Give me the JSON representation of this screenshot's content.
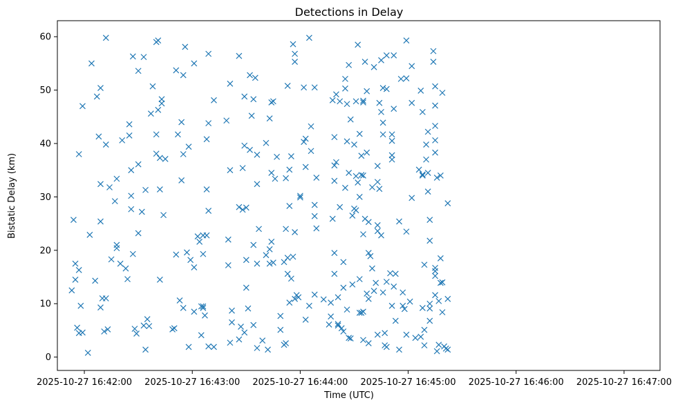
{
  "chart_data": {
    "type": "scatter",
    "title": "Detections in Delay",
    "xlabel": "Time (UTC)",
    "ylabel": "Bistatic Delay (km)",
    "marker": "x",
    "color": "#1f77b4",
    "grid": false,
    "xlim": [
      "2025-10-27 16:41:45",
      "2025-10-27 16:47:20"
    ],
    "ylim": [
      -2.5,
      63
    ],
    "xticks": [
      "2025-10-27 16:42:00",
      "2025-10-27 16:43:00",
      "2025-10-27 16:44:00",
      "2025-10-27 16:45:00",
      "2025-10-27 16:46:00",
      "2025-10-27 16:47:00"
    ],
    "yticks": [
      0,
      10,
      20,
      30,
      40,
      50,
      60
    ],
    "x_labels_times": true,
    "points": [
      [
        "16:41:53",
        12.5
      ],
      [
        "16:41:54",
        25.7
      ],
      [
        "16:41:55",
        17.5
      ],
      [
        "16:41:55",
        14.5
      ],
      [
        "16:41:56",
        5.5
      ],
      [
        "16:41:57",
        4.5
      ],
      [
        "16:41:57",
        16.3
      ],
      [
        "16:41:57",
        38
      ],
      [
        "16:41:58",
        9.6
      ],
      [
        "16:41:59",
        4.6
      ],
      [
        "16:41:59",
        47
      ],
      [
        "16:42:02",
        0.8
      ],
      [
        "16:42:03",
        22.9
      ],
      [
        "16:42:04",
        55
      ],
      [
        "16:42:06",
        14.3
      ],
      [
        "16:42:07",
        48.8
      ],
      [
        "16:42:08",
        41.3
      ],
      [
        "16:42:09",
        50.4
      ],
      [
        "16:42:09",
        32.4
      ],
      [
        "16:42:09",
        25.4
      ],
      [
        "16:42:09",
        9.3
      ],
      [
        "16:42:10",
        11
      ],
      [
        "16:42:11",
        4.8
      ],
      [
        "16:42:12",
        11
      ],
      [
        "16:42:12",
        59.8
      ],
      [
        "16:42:12",
        39.8
      ],
      [
        "16:42:13",
        5.2
      ],
      [
        "16:42:14",
        31.8
      ],
      [
        "16:42:15",
        18.3
      ],
      [
        "16:42:17",
        29.2
      ],
      [
        "16:42:18",
        20.4
      ],
      [
        "16:42:18",
        33.4
      ],
      [
        "16:42:18",
        21
      ],
      [
        "16:42:20",
        17.5
      ],
      [
        "16:42:21",
        40.6
      ],
      [
        "16:42:23",
        16.6
      ],
      [
        "16:42:24",
        14.6
      ],
      [
        "16:42:25",
        43.6
      ],
      [
        "16:42:25",
        41.5
      ],
      [
        "16:42:26",
        35
      ],
      [
        "16:42:26",
        30.2
      ],
      [
        "16:42:26",
        27.7
      ],
      [
        "16:42:27",
        56.3
      ],
      [
        "16:42:27",
        19.3
      ],
      [
        "16:42:28",
        5.3
      ],
      [
        "16:42:29",
        4.4
      ],
      [
        "16:42:30",
        53.6
      ],
      [
        "16:42:30",
        36.1
      ],
      [
        "16:42:30",
        23.2
      ],
      [
        "16:42:32",
        27.2
      ],
      [
        "16:42:33",
        5.9
      ],
      [
        "16:42:33",
        56.2
      ],
      [
        "16:42:34",
        31.3
      ],
      [
        "16:42:34",
        1.4
      ],
      [
        "16:42:35",
        7.1
      ],
      [
        "16:42:36",
        5.8
      ],
      [
        "16:42:37",
        45.6
      ],
      [
        "16:42:38",
        50.7
      ],
      [
        "16:42:40",
        59
      ],
      [
        "16:42:40",
        41.7
      ],
      [
        "16:42:40",
        38.1
      ],
      [
        "16:42:41",
        46.3
      ],
      [
        "16:42:41",
        59.3
      ],
      [
        "16:42:42",
        37.3
      ],
      [
        "16:42:42",
        31.4
      ],
      [
        "16:42:42",
        14.5
      ],
      [
        "16:42:43",
        48.3
      ],
      [
        "16:42:43",
        47.5
      ],
      [
        "16:42:44",
        26.6
      ],
      [
        "16:42:45",
        37.1
      ],
      [
        "16:42:49",
        5.2
      ],
      [
        "16:42:50",
        5.4
      ],
      [
        "16:42:51",
        19.2
      ],
      [
        "16:42:51",
        53.7
      ],
      [
        "16:42:52",
        41.7
      ],
      [
        "16:42:53",
        10.6
      ],
      [
        "16:42:54",
        33.1
      ],
      [
        "16:42:54",
        44
      ],
      [
        "16:42:55",
        38
      ],
      [
        "16:42:55",
        52.8
      ],
      [
        "16:42:55",
        9.2
      ],
      [
        "16:42:56",
        58.1
      ],
      [
        "16:42:57",
        19.6
      ],
      [
        "16:42:58",
        1.9
      ],
      [
        "16:42:58",
        39.4
      ],
      [
        "16:42:59",
        18.2
      ],
      [
        "16:43:01",
        55
      ],
      [
        "16:43:01",
        16.8
      ],
      [
        "16:43:01",
        8.5
      ],
      [
        "16:43:03",
        22.6
      ],
      [
        "16:43:04",
        21.6
      ],
      [
        "16:43:05",
        9.5
      ],
      [
        "16:43:05",
        4.1
      ],
      [
        "16:43:06",
        9.5
      ],
      [
        "16:43:06",
        9.2
      ],
      [
        "16:43:06",
        19.3
      ],
      [
        "16:43:06",
        22.8
      ],
      [
        "16:43:07",
        7.8
      ],
      [
        "16:43:08",
        40.8
      ],
      [
        "16:43:08",
        31.4
      ],
      [
        "16:43:08",
        22.8
      ],
      [
        "16:43:09",
        2
      ],
      [
        "16:43:09",
        56.8
      ],
      [
        "16:43:09",
        43.8
      ],
      [
        "16:43:09",
        27.4
      ],
      [
        "16:43:12",
        48.1
      ],
      [
        "16:43:12",
        1.9
      ],
      [
        "16:43:19",
        44.3
      ],
      [
        "16:43:20",
        22
      ],
      [
        "16:43:20",
        17.2
      ],
      [
        "16:43:21",
        51.2
      ],
      [
        "16:43:21",
        35
      ],
      [
        "16:43:21",
        2.7
      ],
      [
        "16:43:22",
        8.7
      ],
      [
        "16:43:22",
        6.5
      ],
      [
        "16:43:26",
        56.4
      ],
      [
        "16:43:26",
        28.1
      ],
      [
        "16:43:26",
        3.3
      ],
      [
        "16:43:27",
        5.7
      ],
      [
        "16:43:28",
        35.4
      ],
      [
        "16:43:28",
        27.6
      ],
      [
        "16:43:29",
        48.8
      ],
      [
        "16:43:29",
        4.6
      ],
      [
        "16:43:29",
        39.6
      ],
      [
        "16:43:30",
        28
      ],
      [
        "16:43:30",
        18.2
      ],
      [
        "16:43:30",
        13
      ],
      [
        "16:43:31",
        9.1
      ],
      [
        "16:43:32",
        38.8
      ],
      [
        "16:43:32",
        52.8
      ],
      [
        "16:43:33",
        45.2
      ],
      [
        "16:43:34",
        48.3
      ],
      [
        "16:43:34",
        21
      ],
      [
        "16:43:34",
        6
      ],
      [
        "16:43:35",
        52.3
      ],
      [
        "16:43:36",
        37.9
      ],
      [
        "16:43:36",
        32.4
      ],
      [
        "16:43:36",
        17.5
      ],
      [
        "16:43:36",
        1.7
      ],
      [
        "16:43:37",
        24
      ],
      [
        "16:43:39",
        3.1
      ],
      [
        "16:43:41",
        40.1
      ],
      [
        "16:43:41",
        19.1
      ],
      [
        "16:43:42",
        1.4
      ],
      [
        "16:43:43",
        44.7
      ],
      [
        "16:43:43",
        20.2
      ],
      [
        "16:43:43",
        17.5
      ],
      [
        "16:43:44",
        34.5
      ],
      [
        "16:43:44",
        47.7
      ],
      [
        "16:43:44",
        21.6
      ],
      [
        "16:43:45",
        47.9
      ],
      [
        "16:43:45",
        17.7
      ],
      [
        "16:43:46",
        33.4
      ],
      [
        "16:43:47",
        37.5
      ],
      [
        "16:43:49",
        7.7
      ],
      [
        "16:43:49",
        5.1
      ],
      [
        "16:43:51",
        2.3
      ],
      [
        "16:43:51",
        17.8
      ],
      [
        "16:43:52",
        2.6
      ],
      [
        "16:43:52",
        24
      ],
      [
        "16:43:52",
        33.5
      ],
      [
        "16:43:53",
        50.8
      ],
      [
        "16:43:53",
        15.6
      ],
      [
        "16:43:53",
        18.6
      ],
      [
        "16:43:54",
        28.3
      ],
      [
        "16:43:54",
        35.1
      ],
      [
        "16:43:54",
        10.2
      ],
      [
        "16:43:55",
        37.6
      ],
      [
        "16:43:55",
        14.7
      ],
      [
        "16:43:56",
        18.8
      ],
      [
        "16:43:56",
        58.6
      ],
      [
        "16:43:57",
        55.3
      ],
      [
        "16:43:57",
        10.9
      ],
      [
        "16:43:57",
        23.4
      ],
      [
        "16:43:57",
        56.8
      ],
      [
        "16:43:58",
        11.6
      ],
      [
        "16:43:59",
        11.2
      ],
      [
        "16:44:00",
        29.9
      ],
      [
        "16:44:00",
        30.2
      ],
      [
        "16:44:02",
        50.5
      ],
      [
        "16:44:02",
        40.3
      ],
      [
        "16:44:03",
        40.9
      ],
      [
        "16:44:03",
        35.6
      ],
      [
        "16:44:03",
        7
      ],
      [
        "16:44:05",
        59.8
      ],
      [
        "16:44:05",
        9.6
      ],
      [
        "16:44:06",
        38.6
      ],
      [
        "16:44:06",
        43.2
      ],
      [
        "16:44:08",
        11.7
      ],
      [
        "16:44:08",
        50.5
      ],
      [
        "16:44:08",
        28.5
      ],
      [
        "16:44:08",
        26.4
      ],
      [
        "16:44:09",
        24.1
      ],
      [
        "16:44:09",
        33.6
      ],
      [
        "16:44:13",
        10.8
      ],
      [
        "16:44:16",
        6.1
      ],
      [
        "16:44:17",
        7.6
      ],
      [
        "16:44:17",
        10.2
      ],
      [
        "16:44:18",
        25.9
      ],
      [
        "16:44:18",
        48.1
      ],
      [
        "16:44:19",
        19.5
      ],
      [
        "16:44:19",
        15.6
      ],
      [
        "16:44:19",
        41.2
      ],
      [
        "16:44:19",
        35.9
      ],
      [
        "16:44:19",
        33
      ],
      [
        "16:44:20",
        49.2
      ],
      [
        "16:44:20",
        36.5
      ],
      [
        "16:44:21",
        5.9
      ],
      [
        "16:44:21",
        6.2
      ],
      [
        "16:44:21",
        11.2
      ],
      [
        "16:44:22",
        47.9
      ],
      [
        "16:44:22",
        28.1
      ],
      [
        "16:44:23",
        5.4
      ],
      [
        "16:44:24",
        4.8
      ],
      [
        "16:44:24",
        17.8
      ],
      [
        "16:44:24",
        13
      ],
      [
        "16:44:25",
        50.3
      ],
      [
        "16:44:25",
        52.1
      ],
      [
        "16:44:25",
        31.7
      ],
      [
        "16:44:26",
        47.4
      ],
      [
        "16:44:26",
        40.4
      ],
      [
        "16:44:26",
        8.9
      ],
      [
        "16:44:27",
        54.7
      ],
      [
        "16:44:27",
        34.5
      ],
      [
        "16:44:27",
        3.6
      ],
      [
        "16:44:28",
        44.5
      ],
      [
        "16:44:28",
        3.5
      ],
      [
        "16:44:29",
        26.5
      ],
      [
        "16:44:29",
        13.6
      ],
      [
        "16:44:30",
        27.8
      ],
      [
        "16:44:30",
        39.8
      ],
      [
        "16:44:31",
        47.9
      ],
      [
        "16:44:31",
        33.9
      ],
      [
        "16:44:31",
        27.5
      ],
      [
        "16:44:32",
        58.5
      ],
      [
        "16:44:32",
        32.7
      ],
      [
        "16:44:33",
        30
      ],
      [
        "16:44:33",
        41.8
      ],
      [
        "16:44:33",
        14.6
      ],
      [
        "16:44:33",
        8.3
      ],
      [
        "16:44:34",
        34.1
      ],
      [
        "16:44:34",
        37.7
      ],
      [
        "16:44:34",
        8.3
      ],
      [
        "16:44:35",
        48
      ],
      [
        "16:44:35",
        47.7
      ],
      [
        "16:44:35",
        34
      ],
      [
        "16:44:35",
        23
      ],
      [
        "16:44:35",
        3.2
      ],
      [
        "16:44:35",
        8.5
      ],
      [
        "16:44:36",
        55.3
      ],
      [
        "16:44:36",
        25.9
      ],
      [
        "16:44:37",
        11.9
      ],
      [
        "16:44:37",
        49.8
      ],
      [
        "16:44:37",
        38.3
      ],
      [
        "16:44:38",
        10.9
      ],
      [
        "16:44:38",
        25.3
      ],
      [
        "16:44:38",
        2.6
      ],
      [
        "16:44:38",
        19.5
      ],
      [
        "16:44:39",
        18.9
      ],
      [
        "16:44:40",
        31.8
      ],
      [
        "16:44:40",
        16.6
      ],
      [
        "16:44:41",
        54.3
      ],
      [
        "16:44:41",
        12.4
      ],
      [
        "16:44:42",
        13.9
      ],
      [
        "16:44:43",
        4.2
      ],
      [
        "16:44:43",
        24.7
      ],
      [
        "16:44:43",
        23.6
      ],
      [
        "16:44:43",
        35.8
      ],
      [
        "16:44:43",
        32.8
      ],
      [
        "16:44:44",
        47.6
      ],
      [
        "16:44:44",
        31.5
      ],
      [
        "16:44:45",
        22.8
      ],
      [
        "16:44:45",
        45.9
      ],
      [
        "16:44:45",
        55.6
      ],
      [
        "16:44:46",
        50.4
      ],
      [
        "16:44:46",
        43.9
      ],
      [
        "16:44:46",
        41.7
      ],
      [
        "16:44:46",
        12.1
      ],
      [
        "16:44:47",
        4.5
      ],
      [
        "16:44:47",
        2.2
      ],
      [
        "16:44:48",
        56.5
      ],
      [
        "16:44:48",
        50.2
      ],
      [
        "16:44:48",
        14.1
      ],
      [
        "16:44:48",
        1.9
      ],
      [
        "16:44:50",
        15.7
      ],
      [
        "16:44:51",
        37.8
      ],
      [
        "16:44:51",
        37
      ],
      [
        "16:44:51",
        41.7
      ],
      [
        "16:44:51",
        40.5
      ],
      [
        "16:44:51",
        9.6
      ],
      [
        "16:44:52",
        56.5
      ],
      [
        "16:44:52",
        46.5
      ],
      [
        "16:44:52",
        13.2
      ],
      [
        "16:44:53",
        6.8
      ],
      [
        "16:44:53",
        15.6
      ],
      [
        "16:44:55",
        25.4
      ],
      [
        "16:44:55",
        1.4
      ],
      [
        "16:44:56",
        52.1
      ],
      [
        "16:44:57",
        9.6
      ],
      [
        "16:44:57",
        12.1
      ],
      [
        "16:44:58",
        9
      ],
      [
        "16:44:59",
        59.3
      ],
      [
        "16:44:59",
        52.2
      ],
      [
        "16:44:59",
        23.5
      ],
      [
        "16:44:59",
        4.2
      ],
      [
        "16:45:01",
        10.4
      ],
      [
        "16:45:02",
        29.8
      ],
      [
        "16:45:02",
        54.5
      ],
      [
        "16:45:02",
        47.6
      ],
      [
        "16:45:04",
        3.6
      ],
      [
        "16:45:06",
        35.1
      ],
      [
        "16:45:07",
        3.8
      ],
      [
        "16:45:07",
        49.9
      ],
      [
        "16:45:08",
        34.2
      ],
      [
        "16:45:08",
        34
      ],
      [
        "16:45:08",
        45.9
      ],
      [
        "16:45:08",
        9.2
      ],
      [
        "16:45:09",
        17.3
      ],
      [
        "16:45:09",
        5.1
      ],
      [
        "16:45:09",
        2.2
      ],
      [
        "16:45:10",
        39.8
      ],
      [
        "16:45:10",
        37
      ],
      [
        "16:45:11",
        42.2
      ],
      [
        "16:45:11",
        31
      ],
      [
        "16:45:11",
        34.5
      ],
      [
        "16:45:12",
        10
      ],
      [
        "16:45:12",
        9.1
      ],
      [
        "16:45:12",
        6.8
      ],
      [
        "16:45:12",
        21.8
      ],
      [
        "16:45:12",
        25.7
      ],
      [
        "16:45:14",
        57.3
      ],
      [
        "16:45:14",
        55.3
      ],
      [
        "16:45:15",
        50.7
      ],
      [
        "16:45:15",
        43.3
      ],
      [
        "16:45:15",
        47.1
      ],
      [
        "16:45:15",
        40.6
      ],
      [
        "16:45:15",
        38.3
      ],
      [
        "16:45:15",
        16.7
      ],
      [
        "16:45:15",
        11.6
      ],
      [
        "16:45:15",
        16.1
      ],
      [
        "16:45:15",
        15.2
      ],
      [
        "16:45:16",
        33.6
      ],
      [
        "16:45:16",
        1.1
      ],
      [
        "16:45:17",
        10.5
      ],
      [
        "16:45:17",
        2.3
      ],
      [
        "16:45:18",
        34
      ],
      [
        "16:45:18",
        13.9
      ],
      [
        "16:45:18",
        18.5
      ],
      [
        "16:45:19",
        49.5
      ],
      [
        "16:45:19",
        14
      ],
      [
        "16:45:19",
        8.4
      ],
      [
        "16:45:20",
        2
      ],
      [
        "16:45:21",
        1.6
      ],
      [
        "16:45:22",
        28.8
      ],
      [
        "16:45:22",
        10.9
      ],
      [
        "16:45:22",
        1.4
      ]
    ]
  }
}
